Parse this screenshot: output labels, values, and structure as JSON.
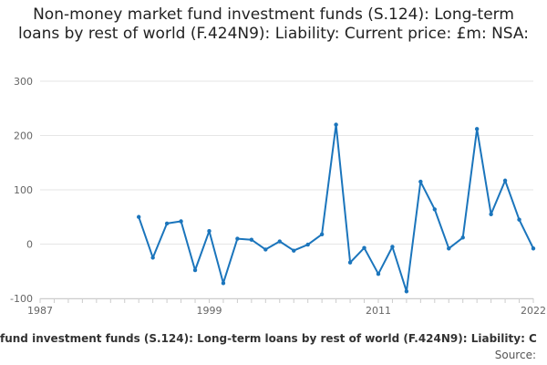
{
  "chart_data": {
    "type": "line",
    "title": "Non-money market fund investment funds (S.124): Long-term loans by rest of world (F.424N9): Liability: Current price: £m: NSA:",
    "xlabel": "",
    "ylabel": "",
    "ylim": [
      -100,
      300
    ],
    "xlim": [
      1987,
      2022
    ],
    "y_ticks": [
      300,
      200,
      100,
      0,
      -100
    ],
    "x_ticks": [
      1987,
      1999,
      2011,
      2022
    ],
    "grid": "horizontal",
    "line_color": "#1b75bc",
    "series": [
      {
        "x": [
          1994,
          1995,
          1996,
          1997,
          1998,
          1999,
          2000,
          2001,
          2002,
          2003,
          2004,
          2005,
          2006,
          2007,
          2008,
          2009,
          2010,
          2011,
          2012,
          2013,
          2014,
          2015,
          2016,
          2017,
          2018,
          2019,
          2020,
          2021,
          2022
        ],
        "values": [
          50,
          -25,
          38,
          42,
          -48,
          24,
          -72,
          10,
          8,
          -10,
          5,
          -12,
          -1,
          18,
          220,
          -34,
          -7,
          -55,
          -5,
          -87,
          115,
          64,
          -8,
          12,
          212,
          55,
          117,
          45,
          -8
        ]
      }
    ]
  },
  "footer": {
    "series_text": "fund investment funds (S.124): Long-term loans by rest of world (F.424N9): Liability: C",
    "source": "Source:"
  }
}
